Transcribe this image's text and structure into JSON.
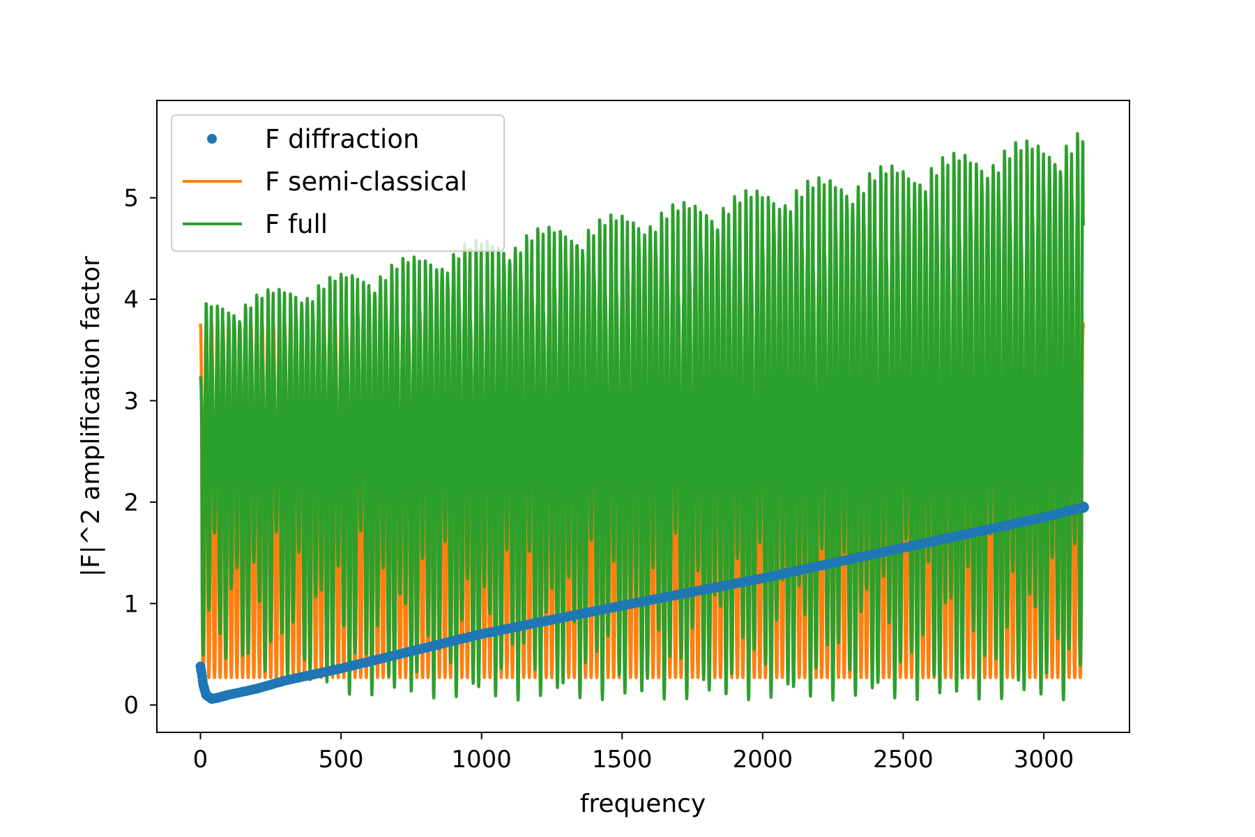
{
  "chart_data": {
    "type": "line",
    "title": "",
    "xlabel": "frequency",
    "ylabel": "|F|^2 amplification factor",
    "xlim": [
      -155,
      3305
    ],
    "ylim": [
      -0.27,
      5.96
    ],
    "x_ticks": [
      0,
      500,
      1000,
      1500,
      2000,
      2500,
      3000
    ],
    "y_ticks": [
      0,
      1,
      2,
      3,
      4,
      5
    ],
    "grid": false,
    "legend_position": "top-left",
    "x_range": [
      0,
      3141
    ],
    "series": [
      {
        "name": "F diffraction",
        "style": "markers",
        "color": "#1f77b4",
        "points": [
          [
            0,
            0.38
          ],
          [
            5,
            0.3
          ],
          [
            10,
            0.2
          ],
          [
            20,
            0.1
          ],
          [
            40,
            0.06
          ],
          [
            60,
            0.07
          ],
          [
            100,
            0.1
          ],
          [
            200,
            0.16
          ],
          [
            300,
            0.24
          ],
          [
            500,
            0.36
          ],
          [
            1000,
            0.7
          ],
          [
            1500,
            0.98
          ],
          [
            2000,
            1.25
          ],
          [
            2500,
            1.55
          ],
          [
            3000,
            1.85
          ],
          [
            3141,
            1.95
          ]
        ]
      },
      {
        "name": "F semi-classical",
        "style": "line",
        "color": "#ff7f0e",
        "envelope": {
          "x": [
            0,
            500,
            1000,
            1500,
            2000,
            2500,
            3141
          ],
          "upper": [
            3.76,
            3.76,
            3.76,
            3.76,
            3.76,
            3.76,
            3.76
          ],
          "lower": [
            0.27,
            0.27,
            0.27,
            0.27,
            0.27,
            0.27,
            0.27
          ]
        },
        "oscillation_period": 20
      },
      {
        "name": "F full",
        "style": "line",
        "color": "#2ca02c",
        "envelope": {
          "x": [
            0,
            500,
            1000,
            1500,
            2000,
            2500,
            3000,
            3141
          ],
          "upper": [
            3.95,
            4.25,
            4.6,
            4.85,
            5.1,
            5.35,
            5.6,
            5.68
          ],
          "lower": [
            0.5,
            0.1,
            0.05,
            0.05,
            0.05,
            0.05,
            0.05,
            0.05
          ]
        },
        "oscillation_period": 20
      }
    ]
  }
}
